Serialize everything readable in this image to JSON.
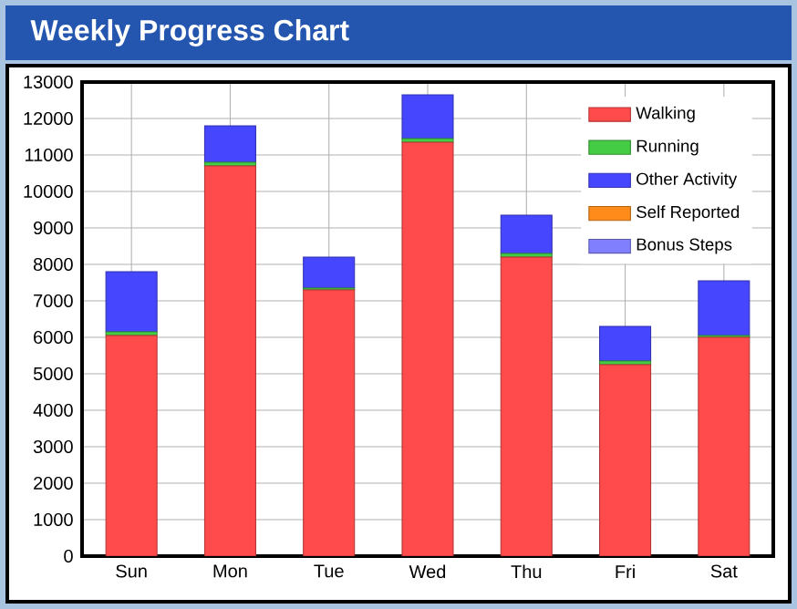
{
  "chart_data": {
    "type": "bar",
    "title": "Weekly Progress Chart",
    "stacked": true,
    "categories": [
      "Sun",
      "Mon",
      "Tue",
      "Wed",
      "Thu",
      "Fri",
      "Sat"
    ],
    "series": [
      {
        "name": "Walking",
        "color": "#ff4b4b",
        "values": [
          6050,
          10700,
          7300,
          11350,
          8200,
          5250,
          6000
        ]
      },
      {
        "name": "Running",
        "color": "#44cc44",
        "values": [
          100,
          100,
          50,
          100,
          100,
          100,
          50
        ]
      },
      {
        "name": "Other Activity",
        "color": "#4646ff",
        "values": [
          1650,
          1000,
          850,
          1200,
          1050,
          950,
          1500
        ]
      },
      {
        "name": "Self Reported",
        "color": "#ff8c1a",
        "values": [
          0,
          0,
          0,
          0,
          0,
          0,
          0
        ]
      },
      {
        "name": "Bonus Steps",
        "color": "#8080ff",
        "values": [
          0,
          0,
          0,
          0,
          0,
          0,
          0
        ]
      }
    ],
    "ylim": [
      0,
      13000
    ],
    "yticks": [
      0,
      1000,
      2000,
      3000,
      4000,
      5000,
      6000,
      7000,
      8000,
      9000,
      10000,
      11000,
      12000,
      13000
    ],
    "grid": true,
    "legend": "top right"
  }
}
